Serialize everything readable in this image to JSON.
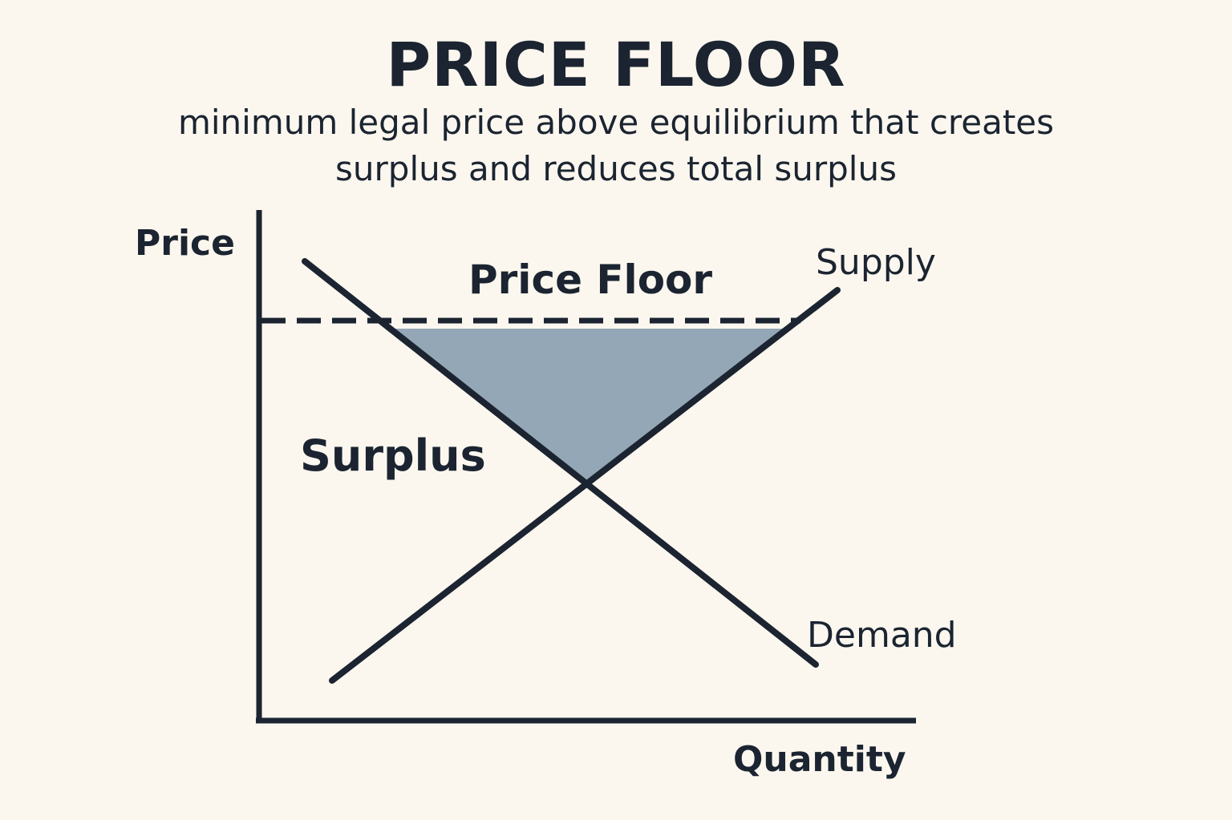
{
  "title": "PRICE FLOOR",
  "subtitle": {
    "line1": "minimum legal price above equilibrium that creates",
    "line2": "surplus and reduces total surplus"
  },
  "labels": {
    "y_axis": "Price",
    "x_axis": "Quantity",
    "price_floor": "Price Floor",
    "supply": "Supply",
    "demand": "Demand",
    "surplus": "Surplus"
  },
  "colors": {
    "ink": "#1b2430",
    "shaded_area": "#94a7b6",
    "background": "#fbf7ef"
  }
}
